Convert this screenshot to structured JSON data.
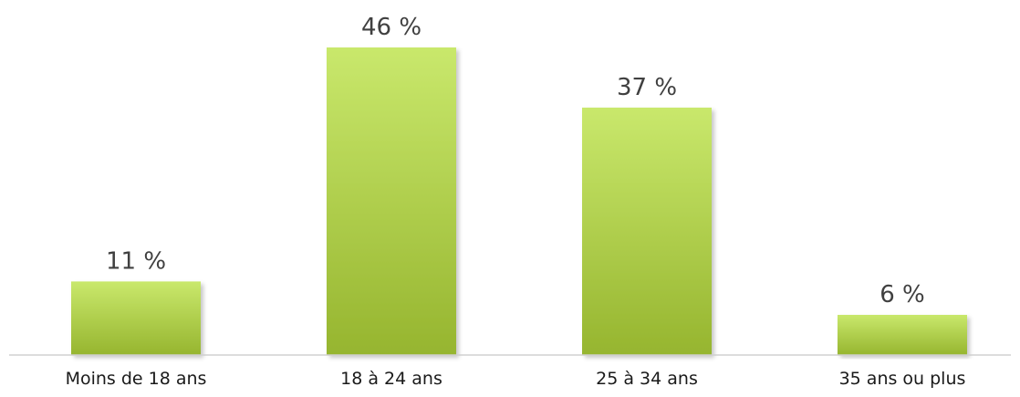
{
  "chart_data": {
    "type": "bar",
    "categories": [
      "Moins de 18 ans",
      "18 à 24 ans",
      "25 à 34 ans",
      "35 ans ou plus"
    ],
    "values": [
      11,
      46,
      37,
      6
    ],
    "value_labels": [
      "11 %",
      "46 %",
      "37 %",
      "6 %"
    ],
    "title": "",
    "xlabel": "",
    "ylabel": "",
    "ylim": [
      0,
      46
    ],
    "grid": false,
    "legend": "none",
    "bar_color_top": "#c9e86c",
    "bar_color_bottom": "#96b52f",
    "axis_color": "#d0d0d0"
  }
}
